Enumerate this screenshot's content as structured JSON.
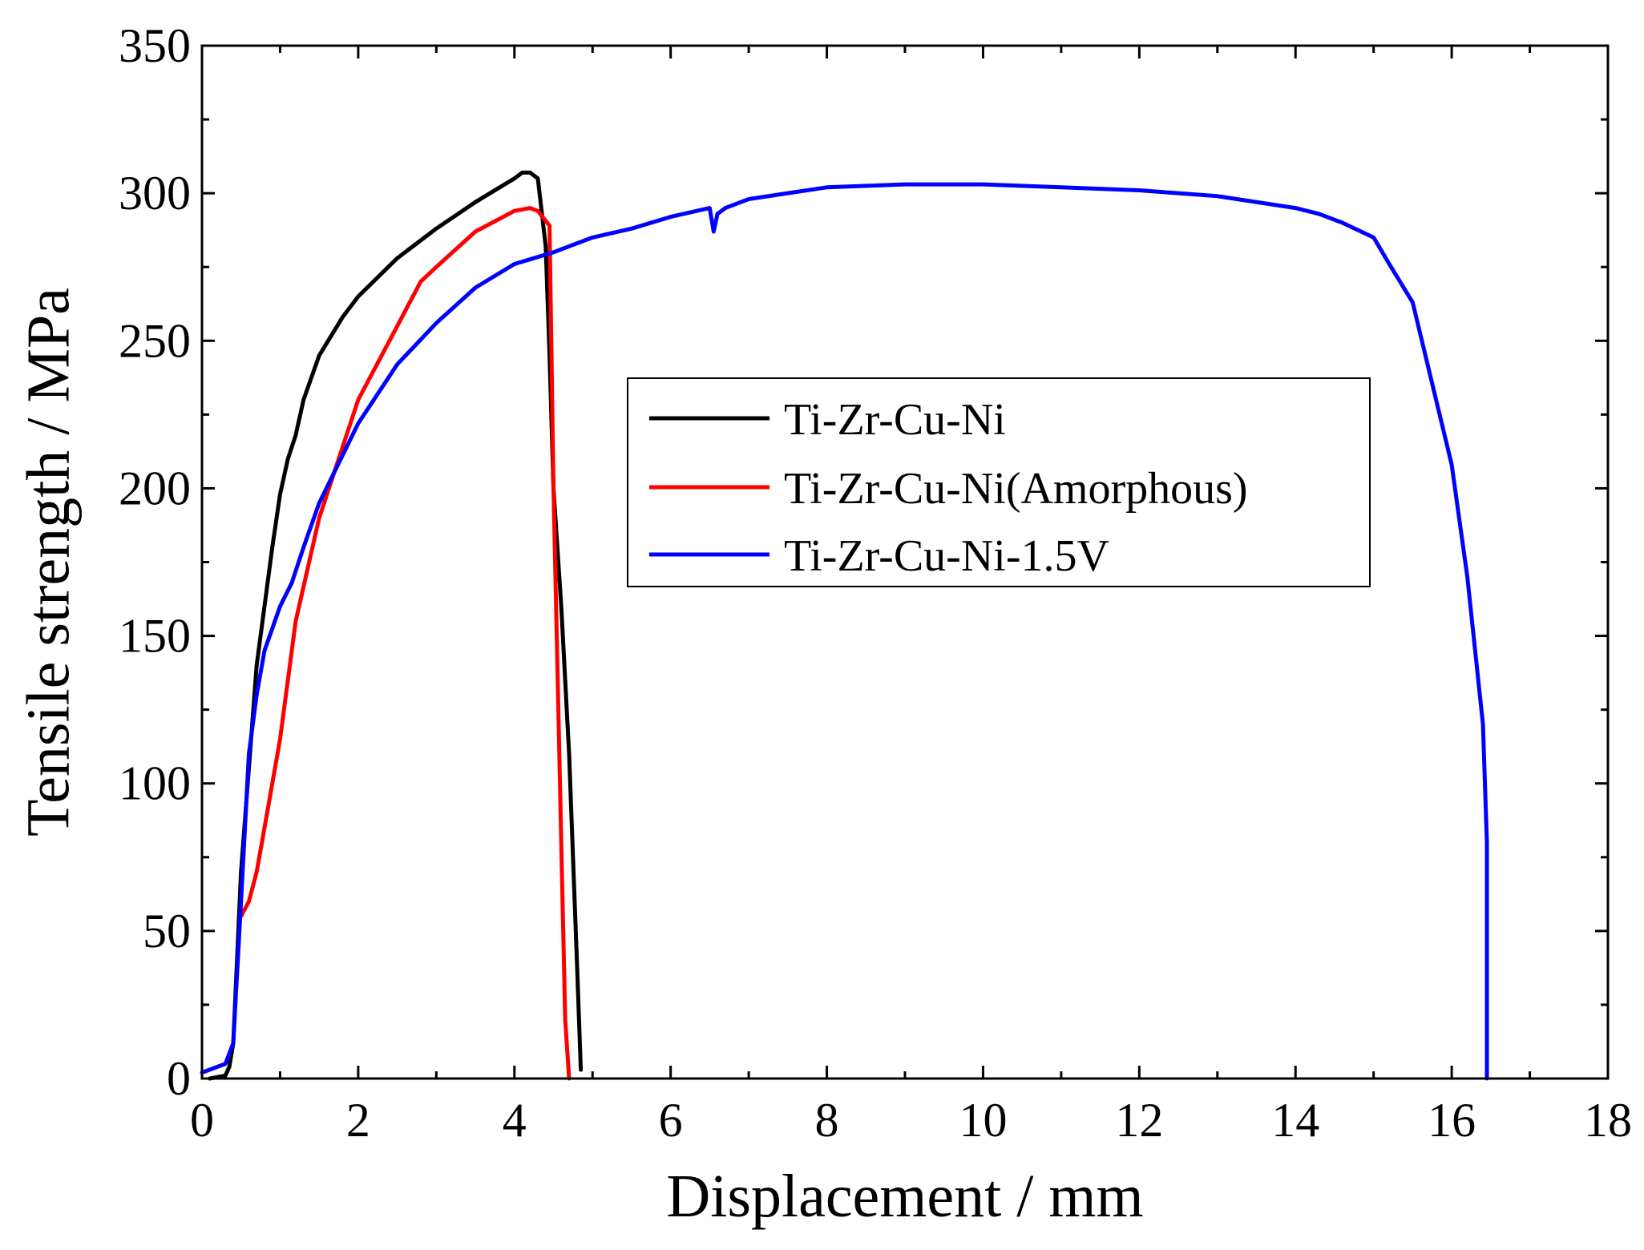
{
  "chart_data": {
    "type": "line",
    "xlabel": "Displacement / mm",
    "ylabel": "Tensile strength / MPa",
    "xlim": [
      0,
      18
    ],
    "ylim": [
      0,
      350
    ],
    "xticks": [
      0,
      2,
      4,
      6,
      8,
      10,
      12,
      14,
      16,
      18
    ],
    "yticks": [
      0,
      50,
      100,
      150,
      200,
      250,
      300,
      350
    ],
    "grid": false,
    "legend_position": "center-right",
    "series": [
      {
        "name": "Ti-Zr-Cu-Ni",
        "color": "#000000",
        "x": [
          0.1,
          0.3,
          0.35,
          0.4,
          0.5,
          0.7,
          0.9,
          1.0,
          1.1,
          1.2,
          1.3,
          1.5,
          1.8,
          2.0,
          2.5,
          3.0,
          3.5,
          4.0,
          4.1,
          4.2,
          4.3,
          4.4,
          4.45,
          4.5,
          4.6,
          4.7,
          4.8,
          4.85
        ],
        "y": [
          0,
          1,
          4,
          12,
          70,
          140,
          180,
          198,
          210,
          218,
          230,
          245,
          258,
          265,
          278,
          288,
          297,
          305,
          307,
          307,
          305,
          282,
          245,
          200,
          160,
          110,
          40,
          3
        ]
      },
      {
        "name": "Ti-Zr-Cu-Ni(Amorphous)",
        "color": "#ff0000",
        "x": [
          0.5,
          0.6,
          0.7,
          0.8,
          1.0,
          1.2,
          1.5,
          2.0,
          2.5,
          2.8,
          3.0,
          3.5,
          4.0,
          4.2,
          4.3,
          4.45,
          4.5,
          4.55,
          4.6,
          4.65,
          4.7
        ],
        "y": [
          55,
          60,
          70,
          85,
          115,
          155,
          190,
          230,
          255,
          270,
          275,
          287,
          294,
          295,
          294,
          289,
          200,
          140,
          80,
          20,
          0
        ]
      },
      {
        "name": "Ti-Zr-Cu-Ni-1.5V",
        "color": "#0000ff",
        "x": [
          0.0,
          0.3,
          0.4,
          0.5,
          0.6,
          0.7,
          0.8,
          1.0,
          1.15,
          1.2,
          1.3,
          1.5,
          2.0,
          2.5,
          3.0,
          3.5,
          4.0,
          4.5,
          5.0,
          5.5,
          6.0,
          6.5,
          6.55,
          6.6,
          6.7,
          7.0,
          7.5,
          8.0,
          9.0,
          10.0,
          11.0,
          12.0,
          13.0,
          14.0,
          14.3,
          14.6,
          15.0,
          15.2,
          15.5,
          15.8,
          16.0,
          16.2,
          16.4,
          16.45,
          16.45
        ],
        "y": [
          2,
          5,
          12,
          60,
          110,
          130,
          145,
          160,
          168,
          172,
          180,
          195,
          222,
          242,
          256,
          268,
          276,
          280,
          285,
          288,
          292,
          295,
          287,
          293,
          295,
          298,
          300,
          302,
          303,
          303,
          302,
          301,
          299,
          295,
          293,
          290,
          285,
          276,
          263,
          230,
          208,
          170,
          120,
          80,
          0
        ]
      }
    ]
  }
}
